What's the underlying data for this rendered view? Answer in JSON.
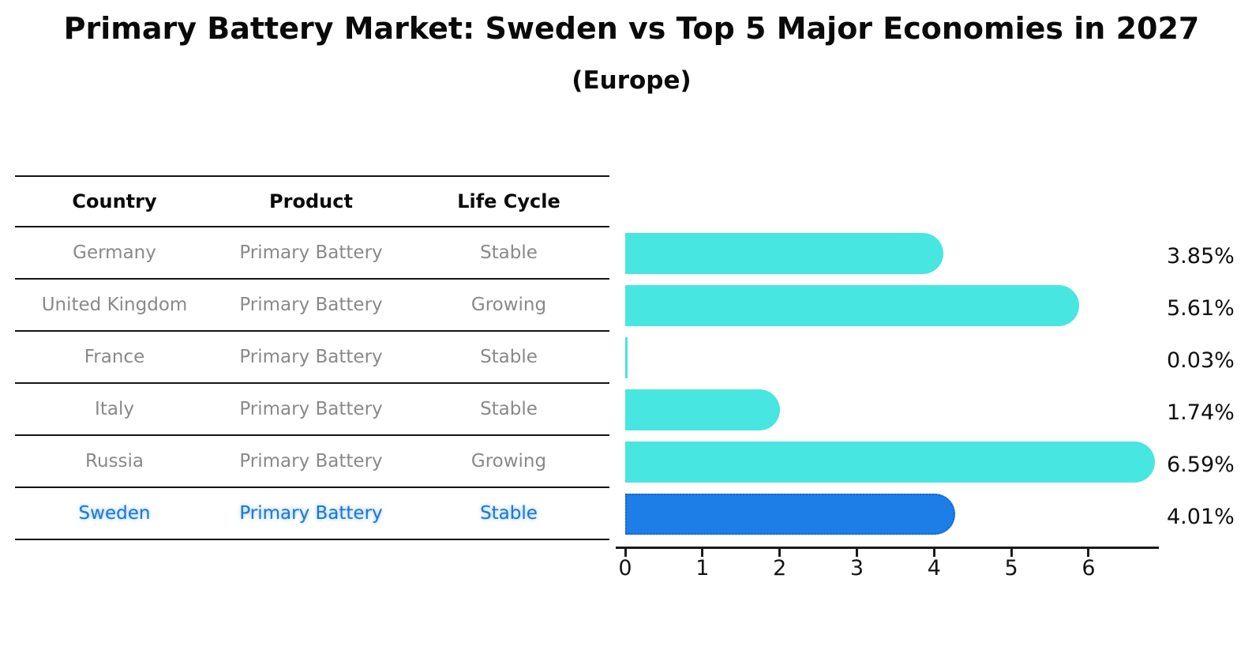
{
  "title": "Primary Battery Market: Sweden vs Top 5 Major Economies in 2027",
  "subtitle": "(Europe)",
  "table": {
    "headers": [
      "Country",
      "Product",
      "Life Cycle"
    ],
    "rows": [
      {
        "country": "Germany",
        "product": "Primary Battery",
        "life_cycle": "Stable",
        "highlighted": false
      },
      {
        "country": "United Kingdom",
        "product": "Primary Battery",
        "life_cycle": "Growing",
        "highlighted": false
      },
      {
        "country": "France",
        "product": "Primary Battery",
        "life_cycle": "Stable",
        "highlighted": false
      },
      {
        "country": "Italy",
        "product": "Primary Battery",
        "life_cycle": "Stable",
        "highlighted": false
      },
      {
        "country": "Russia",
        "product": "Primary Battery",
        "life_cycle": "Growing",
        "highlighted": false
      },
      {
        "country": "Sweden",
        "product": "Primary Battery",
        "life_cycle": "Stable",
        "highlighted": true
      }
    ]
  },
  "chart_data": {
    "type": "bar",
    "orientation": "horizontal",
    "title": "Primary Battery Market: Sweden vs Top 5 Major Economies in 2027",
    "subtitle": "(Europe)",
    "categories": [
      "Germany",
      "United Kingdom",
      "France",
      "Italy",
      "Russia",
      "Sweden"
    ],
    "values": [
      3.85,
      5.61,
      0.03,
      1.74,
      6.59,
      4.01
    ],
    "value_labels": [
      "3.85%",
      "5.61%",
      "0.03%",
      "1.74%",
      "6.59%",
      "4.01%"
    ],
    "x_tick_labels": [
      "0",
      "1",
      "2",
      "3",
      "4",
      "5",
      "6"
    ],
    "x_ticks": [
      0,
      1,
      2,
      3,
      4,
      5,
      6
    ],
    "xlim": [
      0,
      6.91
    ],
    "grid": false,
    "legend": null,
    "highlight_index": 5,
    "colors": {
      "bar": "#47E6E0",
      "highlight_bar": "#1E7EE8",
      "highlight_border": "#1365CF",
      "highlight_text": "#2277CC",
      "row_text": "#898989",
      "axis": "#1A1A1A"
    }
  }
}
